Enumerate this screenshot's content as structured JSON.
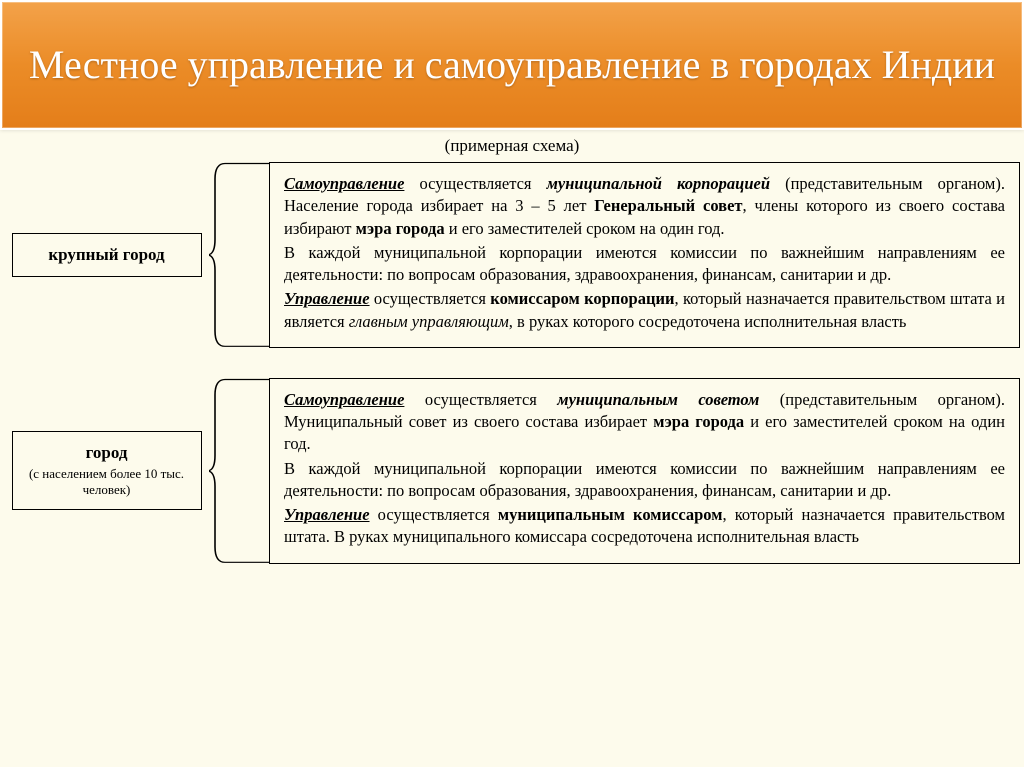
{
  "header": {
    "title": "Местное управление и самоуправление в городах Индии",
    "title_color": "#ffffff",
    "bg_gradient_top": "#f3a24a",
    "bg_gradient_bottom": "#e47e1a",
    "fontsize": 40
  },
  "subtitle": "(примерная схема)",
  "page_bg": "#fdfbec",
  "border_color": "#000000",
  "body_fontsize": 16.5,
  "blocks": [
    {
      "label_title": "крупный город",
      "label_sub": "",
      "desc_html": "<p><span class='bi u'>Самоуправление</span> осуществляется <span class='bi'>муниципальной корпорацией</span> (представительным органом). Население города избирает на 3 – 5 лет <span class='b'>Генеральный совет</span>, члены которого из своего состава избирают <span class='b'>мэра города</span> и его заместителей сроком на один год.</p><p>В каждой муниципальной корпорации имеются комиссии по важнейшим направлениям ее деятельности: по вопросам образования, здравоохранения, финансам, санитарии и др.</p><p><span class='bi u'>Управление</span> осуществляется <span class='b'>комиссаром корпорации</span>, который назначается правительством штата и является <span class='i'>главным управляющим</span>, в руках которого сосредоточена исполнительная власть</p>"
    },
    {
      "label_title": "город",
      "label_sub": "(с населением более 10 тыс. человек)",
      "desc_html": "<p><span class='bi u'>Самоуправление</span> осуществляется <span class='bi'>муниципальным советом</span> (представительным органом). Муниципальный совет  из своего состава избирает <span class='b'>мэра города</span> и его заместителей сроком на один год.</p><p>В каждой муниципальной корпорации имеются комиссии по важнейшим направлениям ее деятельности: по вопросам образования, здравоохранения, финансам, санитарии и др.</p><p><span class='bi u'>Управление</span> осуществляется <span class='b'>муниципальным комиссаром</span>, который назначается правительством штата. В руках муниципального комиссара  сосредоточена исполнительная власть</p>"
    }
  ]
}
